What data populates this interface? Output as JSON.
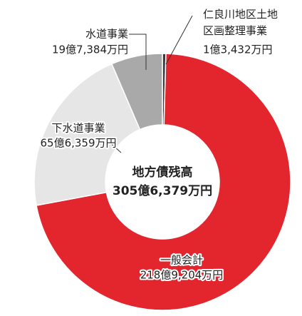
{
  "chart_data": {
    "type": "donut",
    "center_title": "地方債残高",
    "total": {
      "value": 3056379,
      "label": "305億6,379万円"
    },
    "categories": [
      "仁良川地区土地区画整理事業",
      "一般会計",
      "下水道事業",
      "水道事業"
    ],
    "values": [
      13432,
      2189204,
      656359,
      197384
    ],
    "value_labels": [
      "1億3,432万円",
      "218億9,204万円",
      "65億6,359万円",
      "19億7,384万円"
    ],
    "colors": [
      "#3a3a3a",
      "#e3262e",
      "#e6e6e6",
      "#a9a9a9"
    ]
  }
}
